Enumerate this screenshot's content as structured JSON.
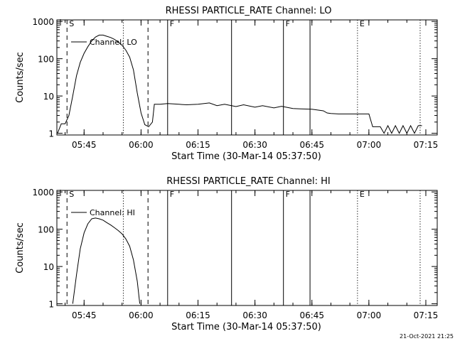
{
  "footer": {
    "timestamp": "21-Oct-2021 21:25"
  },
  "chart_data": [
    {
      "type": "line",
      "title": "RHESSI PARTICLE_RATE Channel: LO",
      "xlabel": "Start Time (30-Mar-14 05:37:50)",
      "ylabel": "Counts/sec",
      "yscale": "log",
      "xlim": [
        "05:37:50",
        "07:18:00"
      ],
      "ylim": [
        0.9,
        1100
      ],
      "x_ticks": [
        "05:45",
        "06:00",
        "06:15",
        "06:30",
        "06:45",
        "07:00",
        "07:15"
      ],
      "y_ticks": [
        "1",
        "10",
        "100",
        "1000"
      ],
      "legend": {
        "label": "Channel: LO",
        "position": "top-left"
      },
      "markers": [
        {
          "time": "05:40:30",
          "style": "dashed",
          "label": "S"
        },
        {
          "time": "05:55:20",
          "style": "dotted",
          "label": ""
        },
        {
          "time": "06:01:50",
          "style": "dashed",
          "label": ""
        },
        {
          "time": "06:07:00",
          "style": "solid",
          "label": "F"
        },
        {
          "time": "06:23:50",
          "style": "solid",
          "label": ""
        },
        {
          "time": "06:37:30",
          "style": "solid",
          "label": "F"
        },
        {
          "time": "06:44:30",
          "style": "solid",
          "label": ""
        },
        {
          "time": "06:57:00",
          "style": "dotted",
          "label": "E"
        },
        {
          "time": "07:13:30",
          "style": "dotted",
          "label": ""
        }
      ],
      "series": [
        {
          "name": "Channel: LO",
          "points": [
            [
              "05:38:00",
              1.0
            ],
            [
              "05:39:00",
              1.8
            ],
            [
              "05:40:00",
              1.8
            ],
            [
              "05:41:00",
              3.0
            ],
            [
              "05:42:00",
              10
            ],
            [
              "05:43:00",
              35
            ],
            [
              "05:44:00",
              80
            ],
            [
              "05:45:00",
              140
            ],
            [
              "05:46:00",
              210
            ],
            [
              "05:47:00",
              300
            ],
            [
              "05:48:00",
              380
            ],
            [
              "05:49:00",
              430
            ],
            [
              "05:50:00",
              430
            ],
            [
              "05:51:00",
              400
            ],
            [
              "05:52:00",
              370
            ],
            [
              "05:53:00",
              330
            ],
            [
              "05:54:00",
              280
            ],
            [
              "05:55:00",
              230
            ],
            [
              "05:56:00",
              170
            ],
            [
              "05:57:00",
              110
            ],
            [
              "05:58:00",
              50
            ],
            [
              "05:59:00",
              12
            ],
            [
              "06:00:00",
              3.5
            ],
            [
              "06:01:00",
              1.7
            ],
            [
              "06:02:00",
              1.5
            ],
            [
              "06:03:00",
              2.0
            ],
            [
              "06:03:30",
              6.0
            ],
            [
              "06:05:00",
              6.0
            ],
            [
              "06:07:00",
              6.3
            ],
            [
              "06:10:00",
              6.0
            ],
            [
              "06:12:00",
              5.8
            ],
            [
              "06:15:00",
              6.0
            ],
            [
              "06:18:00",
              6.5
            ],
            [
              "06:20:00",
              5.5
            ],
            [
              "06:22:00",
              6.0
            ],
            [
              "06:25:00",
              5.2
            ],
            [
              "06:27:00",
              5.8
            ],
            [
              "06:30:00",
              5.0
            ],
            [
              "06:32:00",
              5.5
            ],
            [
              "06:35:00",
              4.8
            ],
            [
              "06:37:00",
              5.3
            ],
            [
              "06:40:00",
              4.6
            ],
            [
              "06:42:00",
              4.5
            ],
            [
              "06:45:00",
              4.4
            ],
            [
              "06:48:00",
              4.0
            ],
            [
              "06:49:00",
              3.5
            ],
            [
              "06:50:00",
              3.4
            ],
            [
              "06:52:00",
              3.3
            ],
            [
              "06:55:00",
              3.3
            ],
            [
              "07:00:00",
              3.3
            ],
            [
              "07:01:00",
              1.5
            ],
            [
              "07:03:00",
              1.5
            ],
            [
              "07:04:00",
              1.0
            ],
            [
              "07:05:00",
              1.6
            ],
            [
              "07:06:00",
              1.0
            ],
            [
              "07:07:00",
              1.6
            ],
            [
              "07:08:00",
              1.0
            ],
            [
              "07:09:00",
              1.6
            ],
            [
              "07:10:00",
              1.0
            ],
            [
              "07:11:00",
              1.6
            ],
            [
              "07:12:00",
              1.0
            ],
            [
              "07:13:00",
              1.6
            ],
            [
              "07:14:00",
              1.6
            ]
          ]
        }
      ]
    },
    {
      "type": "line",
      "title": "RHESSI PARTICLE_RATE Channel: HI",
      "xlabel": "Start Time (30-Mar-14 05:37:50)",
      "ylabel": "Counts/sec",
      "yscale": "log",
      "xlim": [
        "05:37:50",
        "07:18:00"
      ],
      "ylim": [
        0.9,
        1100
      ],
      "x_ticks": [
        "05:45",
        "06:00",
        "06:15",
        "06:30",
        "06:45",
        "07:00",
        "07:15"
      ],
      "y_ticks": [
        "1",
        "10",
        "100",
        "1000"
      ],
      "legend": {
        "label": "Channel: HI",
        "position": "top-left"
      },
      "markers": [
        {
          "time": "05:40:30",
          "style": "dashed",
          "label": "S"
        },
        {
          "time": "05:55:20",
          "style": "dotted",
          "label": ""
        },
        {
          "time": "06:01:50",
          "style": "dashed",
          "label": ""
        },
        {
          "time": "06:07:00",
          "style": "solid",
          "label": "F"
        },
        {
          "time": "06:23:50",
          "style": "solid",
          "label": ""
        },
        {
          "time": "06:37:30",
          "style": "solid",
          "label": "F"
        },
        {
          "time": "06:44:30",
          "style": "solid",
          "label": ""
        },
        {
          "time": "06:57:00",
          "style": "dotted",
          "label": "E"
        },
        {
          "time": "07:13:30",
          "style": "dotted",
          "label": ""
        }
      ],
      "series": [
        {
          "name": "Channel: HI",
          "points": [
            [
              "05:42:00",
              1.0
            ],
            [
              "05:43:00",
              6.0
            ],
            [
              "05:44:00",
              30
            ],
            [
              "05:45:00",
              80
            ],
            [
              "05:46:00",
              140
            ],
            [
              "05:47:00",
              190
            ],
            [
              "05:48:00",
              200
            ],
            [
              "05:49:00",
              190
            ],
            [
              "05:50:00",
              175
            ],
            [
              "05:51:00",
              150
            ],
            [
              "05:52:00",
              130
            ],
            [
              "05:53:00",
              110
            ],
            [
              "05:54:00",
              92
            ],
            [
              "05:55:00",
              75
            ],
            [
              "05:56:00",
              55
            ],
            [
              "05:57:00",
              35
            ],
            [
              "05:58:00",
              15
            ],
            [
              "05:59:00",
              4.0
            ],
            [
              "05:59:40",
              1.0
            ]
          ]
        }
      ]
    }
  ]
}
